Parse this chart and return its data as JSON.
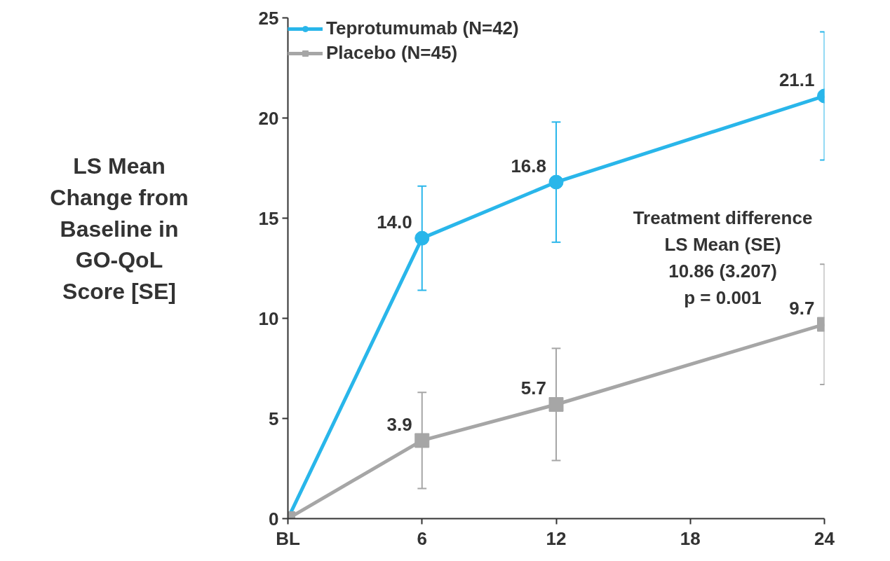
{
  "chart_data": {
    "type": "line",
    "ylabel": "LS Mean Change from Baseline in GO-QoL Score [SE]",
    "x": [
      0,
      6,
      12,
      24
    ],
    "series": [
      {
        "name": "Teprotumumab (N=42)",
        "color": "#29b6ea",
        "marker": "circle",
        "values": [
          0,
          14.0,
          16.8,
          21.1
        ],
        "errors": [
          null,
          [
            11.4,
            16.6
          ],
          [
            13.8,
            19.8
          ],
          [
            17.9,
            24.3
          ]
        ],
        "value_labels": [
          null,
          "14.0",
          "16.8",
          "21.1"
        ]
      },
      {
        "name": "Placebo (N=45)",
        "color": "#a6a6a6",
        "marker": "square",
        "values": [
          0,
          3.9,
          5.7,
          9.7
        ],
        "errors": [
          null,
          [
            1.5,
            6.3
          ],
          [
            2.9,
            8.5
          ],
          [
            6.7,
            12.7
          ]
        ],
        "value_labels": [
          null,
          "3.9",
          "5.7",
          "9.7"
        ]
      }
    ],
    "xlim": [
      0,
      24
    ],
    "xticks": [
      {
        "value": 0,
        "label": "BL"
      },
      6,
      12,
      18,
      24
    ],
    "ylim": [
      0,
      25
    ],
    "yticks": [
      0,
      5,
      10,
      15,
      20,
      25
    ],
    "annotations": [
      "Treatment difference",
      "LS Mean (SE)",
      "10.86 (3.207)",
      "p = 0.001"
    ],
    "legend": "top left",
    "grid": false,
    "line_style": "solid"
  }
}
